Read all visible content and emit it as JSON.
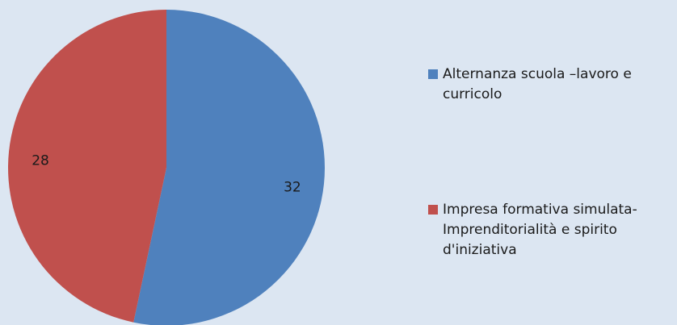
{
  "chart_data": {
    "type": "pie",
    "categories": [
      "Alternanza scuola –lavoro e curricolo",
      "Impresa formativa simulata-Imprenditorialità e spirito d'iniziativa"
    ],
    "values": [
      32,
      28
    ],
    "colors": [
      "#4f81bd",
      "#c0504d"
    ],
    "legend": "right"
  }
}
